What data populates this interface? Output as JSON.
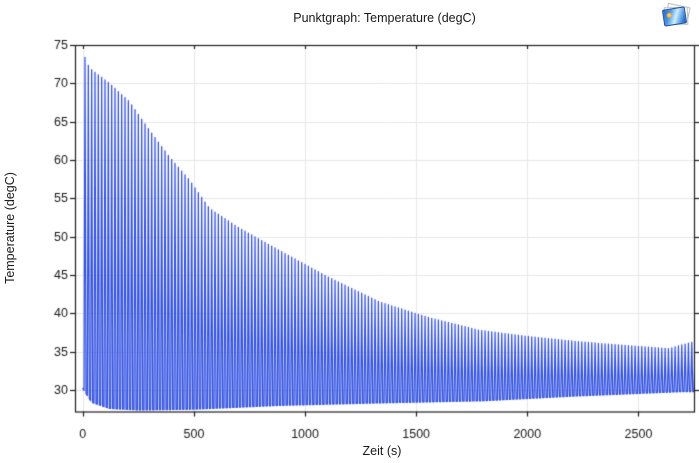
{
  "window": {
    "background": "#ffffff",
    "icon": {
      "name": "plot-group-image-icon"
    }
  },
  "chart_data": {
    "type": "line",
    "title": "Punktgraph: Temperature (degC)",
    "xlabel": "Zeit (s)",
    "ylabel": "Temperature (degC)",
    "xlim": [
      -35,
      2750
    ],
    "ylim": [
      27.2,
      75
    ],
    "xticks": [
      0,
      500,
      1000,
      1500,
      2000,
      2500
    ],
    "yticks": [
      30,
      35,
      40,
      45,
      50,
      55,
      60,
      65,
      70,
      75
    ],
    "grid": true,
    "legend": "none",
    "series_color": "#3150e2",
    "grid_color": "#e8e8e8",
    "axis_color": "#1f1f1f",
    "text_color": "#1a1a1a",
    "oscillation": {
      "description": "dense periodic temperature spikes between a decaying upper envelope and a slowly rising lower baseline",
      "period_s": 15,
      "first_peak_t": 10,
      "rise_time_s": 4.5,
      "fall_time_s": 4.5,
      "t_start": 0,
      "t_end": 2745,
      "peak_envelope": [
        [
          10,
          73.4
        ],
        [
          30,
          72.0
        ],
        [
          120,
          70.0
        ],
        [
          210,
          67.6
        ],
        [
          300,
          63.9
        ],
        [
          390,
          60.4
        ],
        [
          480,
          57.4
        ],
        [
          570,
          53.7
        ],
        [
          700,
          51.2
        ],
        [
          885,
          48.2
        ],
        [
          1100,
          44.8
        ],
        [
          1335,
          41.5
        ],
        [
          1550,
          39.5
        ],
        [
          1784,
          37.8
        ],
        [
          2000,
          37.0
        ],
        [
          2233,
          36.3
        ],
        [
          2450,
          35.8
        ],
        [
          2637,
          35.4
        ],
        [
          2735,
          36.2
        ]
      ],
      "base_envelope": [
        [
          0,
          30.2
        ],
        [
          40,
          28.4
        ],
        [
          120,
          27.6
        ],
        [
          250,
          27.4
        ],
        [
          500,
          27.5
        ],
        [
          885,
          28.0
        ],
        [
          1300,
          28.3
        ],
        [
          1800,
          28.6
        ],
        [
          2200,
          29.2
        ],
        [
          2700,
          29.8
        ]
      ]
    }
  }
}
